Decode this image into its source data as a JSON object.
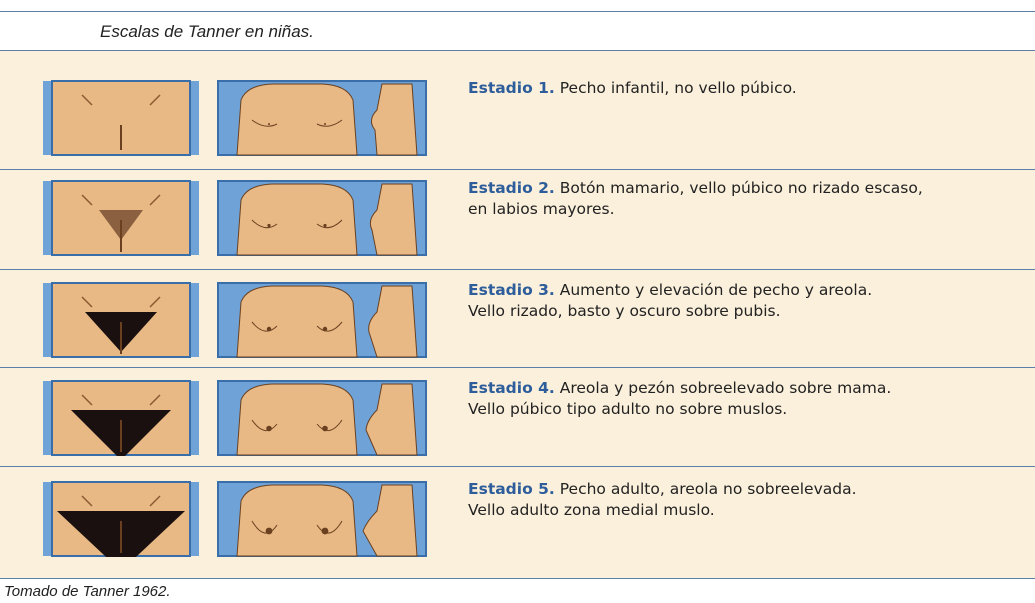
{
  "header": {
    "title": "Escalas de Tanner en niñas."
  },
  "rows": [
    {
      "stage": "Estadio 1.",
      "lines": [
        "Pecho infantil, no vello púbico."
      ]
    },
    {
      "stage": "Estadio 2.",
      "lines": [
        "Botón mamario, vello púbico no rizado escaso,",
        "en labios mayores."
      ]
    },
    {
      "stage": "Estadio 3.",
      "lines": [
        "Aumento y elevación de pecho y areola.",
        "Vello rizado, basto y oscuro sobre pubis."
      ]
    },
    {
      "stage": "Estadio 4.",
      "lines": [
        "Areola y pezón sobreelevado sobre mama.",
        "Vello púbico tipo adulto no sobre muslos."
      ]
    },
    {
      "stage": "Estadio 5.",
      "lines": [
        "Pecho adulto, areola no sobreelevada.",
        "Vello adulto zona medial muslo."
      ]
    }
  ],
  "footer": {
    "source": "Tomado de Tanner 1962."
  }
}
